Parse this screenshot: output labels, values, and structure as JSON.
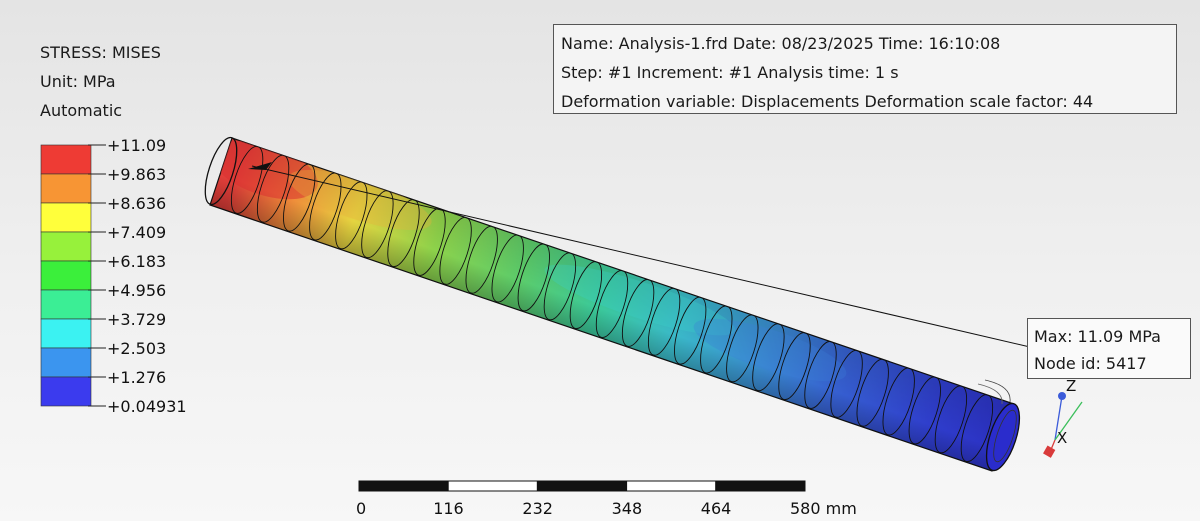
{
  "legend": {
    "title": "STRESS: MISES",
    "unit": "Unit: MPa",
    "mode": "Automatic",
    "bands": [
      {
        "color": "#ee3b34"
      },
      {
        "color": "#f79534"
      },
      {
        "color": "#ffff3b"
      },
      {
        "color": "#97f13b"
      },
      {
        "color": "#3bef3b"
      },
      {
        "color": "#3bee95"
      },
      {
        "color": "#3bf2f2"
      },
      {
        "color": "#3b95ef"
      },
      {
        "color": "#3b3bee"
      }
    ],
    "ticks": [
      "+11.09",
      "+9.863",
      "+8.636",
      "+7.409",
      "+6.183",
      "+4.956",
      "+3.729",
      "+2.503",
      "+1.276",
      "+0.04931"
    ]
  },
  "info": {
    "line1": "Name: Analysis-1.frd   Date: 08/23/2025   Time: 16:10:08",
    "line2": "Step: #1   Increment: #1   Analysis time: 1 s",
    "line3": "Deformation variable: Displacements   Deformation scale factor: 44"
  },
  "max_box": {
    "line1": "Max: 11.09 MPa",
    "line2": "Node id: 5417"
  },
  "scale_bar": {
    "labels": [
      "0",
      "116",
      "232",
      "348",
      "464",
      "580 mm"
    ]
  },
  "axes": {
    "z_label": "Z",
    "x_label": "X",
    "z_color": "#3b5bd9",
    "x_color": "#d93b3b",
    "y_color": "#3bbf5b"
  }
}
